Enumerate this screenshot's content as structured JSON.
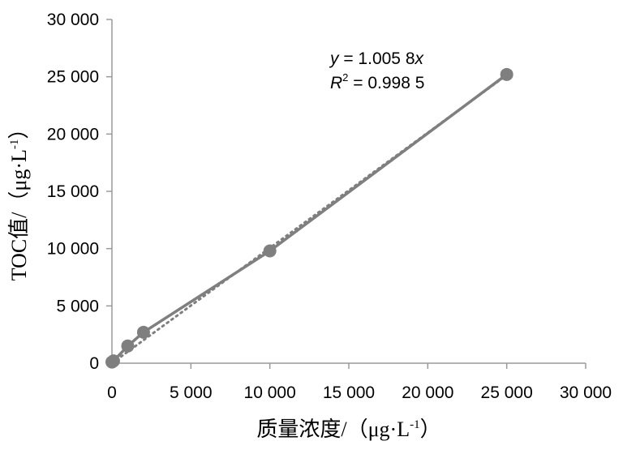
{
  "chart_data": {
    "type": "scatter",
    "xlabel": "质量浓度/（μg·L",
    "xlabel_sup": "-1",
    "xlabel_close": "）",
    "ylabel": "TOC值/（μg·L",
    "ylabel_sup": "-1",
    "ylabel_close": "）",
    "xlim": [
      0,
      30000
    ],
    "ylim": [
      0,
      30000
    ],
    "x_ticks": [
      0,
      5000,
      10000,
      15000,
      20000,
      25000,
      30000
    ],
    "x_tick_labels": [
      "0",
      "5 000",
      "10 000",
      "15 000",
      "20 000",
      "25 000",
      "30 000"
    ],
    "y_ticks": [
      0,
      5000,
      10000,
      15000,
      20000,
      25000,
      30000
    ],
    "y_tick_labels": [
      "0",
      "5 000",
      "10 000",
      "15 000",
      "20 000",
      "25 000",
      "30 000"
    ],
    "grid": false,
    "series": [
      {
        "x": [
          0,
          100,
          1000,
          2000,
          10000,
          25000
        ],
        "y": [
          100,
          200,
          1500,
          2700,
          9800,
          25200
        ],
        "color": "#7f7f7f"
      }
    ],
    "trendline": {
      "slope": 1.0058,
      "style": "dotted",
      "color": "#7f7f7f"
    },
    "annotation": {
      "eq_var": "y",
      "eq_rest": " = 1.005 8",
      "eq_x": "x",
      "r2_var": "R",
      "r2_sup": "2",
      "r2_rest": " = 0.998 5"
    }
  }
}
